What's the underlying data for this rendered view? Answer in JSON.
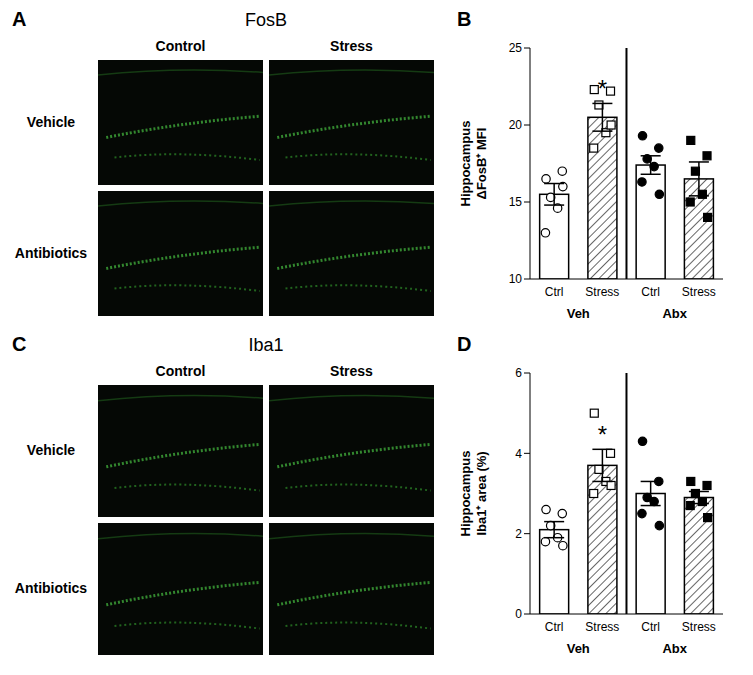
{
  "image_panels": [
    {
      "panel": "A",
      "title": "FosB",
      "columns": [
        "Control",
        "Stress"
      ],
      "rows": [
        "Vehicle",
        "Antibiotics"
      ]
    },
    {
      "panel": "C",
      "title": "Iba1",
      "columns": [
        "Control",
        "Stress"
      ],
      "rows": [
        "Vehicle",
        "Antibiotics"
      ]
    }
  ],
  "chart_data": [
    {
      "panel": "B",
      "type": "bar",
      "ylabel": [
        "Hippocampus",
        "ΔFosB⁺ MFI"
      ],
      "categories": [
        "Ctrl",
        "Stress",
        "Ctrl",
        "Stress"
      ],
      "groups": [
        "Veh",
        "Veh",
        "Abx",
        "Abx"
      ],
      "values": [
        15.5,
        20.5,
        17.4,
        16.5
      ],
      "errors": [
        0.7,
        0.9,
        0.6,
        1.1
      ],
      "points": [
        [
          16.5,
          17.0,
          15.3,
          14.6,
          13.0,
          16.0
        ],
        [
          22.3,
          22.2,
          21.3,
          19.5,
          18.5,
          20.0
        ],
        [
          19.3,
          18.5,
          17.8,
          17.3,
          16.3,
          15.5
        ],
        [
          19.0,
          18.0,
          17.0,
          15.5,
          15.0,
          14.0
        ]
      ],
      "annotations": [
        {
          "text": "*",
          "category_index": 1
        }
      ],
      "color": "#ffffff",
      "ylim": [
        10,
        25
      ],
      "yticks": [
        10,
        15,
        20,
        25
      ]
    },
    {
      "panel": "D",
      "type": "bar",
      "ylabel": [
        "Hippocampus",
        "Iba1⁺ area (%)"
      ],
      "categories": [
        "Ctrl",
        "Stress",
        "Ctrl",
        "Stress"
      ],
      "groups": [
        "Veh",
        "Veh",
        "Abx",
        "Abx"
      ],
      "values": [
        2.1,
        3.7,
        3.0,
        2.9
      ],
      "errors": [
        0.2,
        0.4,
        0.3,
        0.15
      ],
      "points": [
        [
          2.6,
          2.5,
          2.2,
          1.9,
          1.8,
          1.7
        ],
        [
          5.0,
          4.0,
          3.6,
          3.3,
          3.0,
          3.2
        ],
        [
          4.3,
          3.3,
          2.9,
          2.8,
          2.5,
          2.2
        ],
        [
          3.3,
          3.2,
          3.0,
          2.8,
          2.7,
          2.4
        ]
      ],
      "annotations": [
        {
          "text": "*",
          "category_index": 1
        }
      ],
      "color": "#ffffff",
      "ylim": [
        0,
        6
      ],
      "yticks": [
        0,
        2,
        4,
        6
      ]
    }
  ]
}
